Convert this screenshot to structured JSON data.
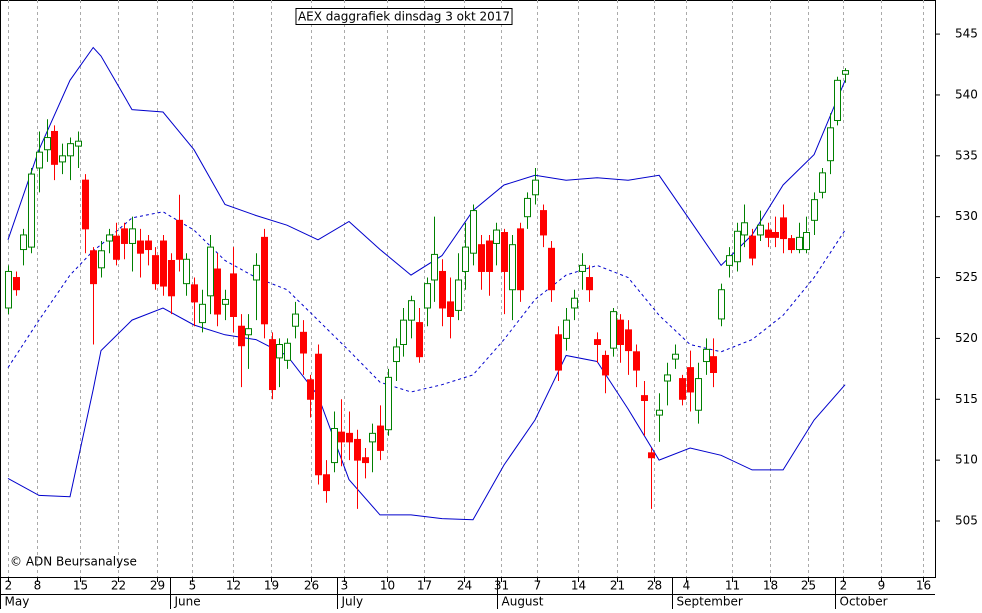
{
  "chart_data": {
    "type": "candlestick",
    "title": "AEX daggrafiek dinsdag 3 okt 2017",
    "annotation": "© ADN Beursanalyse",
    "up_color": "#008000",
    "down_color": "#ff0000",
    "band_color": "#0000cc",
    "grid": true,
    "ylim": [
      500.4,
      547.8
    ],
    "yticks": [
      505,
      510,
      515,
      520,
      525,
      530,
      535,
      540,
      545
    ],
    "xlim": [
      -1.03,
      119.6
    ],
    "xticks": [
      {
        "value": 0,
        "label": "2"
      },
      {
        "value": 3.74,
        "label": "8"
      },
      {
        "value": 9.3,
        "label": "15"
      },
      {
        "value": 14.2,
        "label": "22"
      },
      {
        "value": 19.2,
        "label": "29"
      },
      {
        "value": 23.7,
        "label": "5"
      },
      {
        "value": 29,
        "label": "12"
      },
      {
        "value": 33.9,
        "label": "19"
      },
      {
        "value": 39.1,
        "label": "26"
      },
      {
        "value": 43.4,
        "label": "3"
      },
      {
        "value": 48.9,
        "label": "10"
      },
      {
        "value": 53.7,
        "label": "17"
      },
      {
        "value": 58.8,
        "label": "24"
      },
      {
        "value": 63.6,
        "label": "31"
      },
      {
        "value": 68.3,
        "label": "7"
      },
      {
        "value": 73.6,
        "label": "14"
      },
      {
        "value": 78.6,
        "label": "21"
      },
      {
        "value": 83.4,
        "label": "28"
      },
      {
        "value": 87.5,
        "label": "4"
      },
      {
        "value": 93.4,
        "label": "11"
      },
      {
        "value": 98.3,
        "label": "18"
      },
      {
        "value": 103.2,
        "label": "25"
      },
      {
        "value": 107.7,
        "label": "2"
      },
      {
        "value": 112.6,
        "label": "9"
      },
      {
        "value": 118.1,
        "label": "16"
      }
    ],
    "month_ticks": [
      {
        "value": -1,
        "label": "May"
      },
      {
        "value": 20.9,
        "label": "June"
      },
      {
        "value": 42.5,
        "label": "July"
      },
      {
        "value": 63.1,
        "label": "August"
      },
      {
        "value": 85.7,
        "label": "September"
      },
      {
        "value": 106.7,
        "label": "October"
      }
    ],
    "candles": {
      "x": [
        0,
        1,
        2,
        3,
        4,
        5,
        6,
        7,
        8,
        9,
        10,
        11,
        12,
        13,
        14,
        15,
        16,
        17,
        18,
        19,
        20,
        21,
        22,
        23,
        24,
        25,
        26,
        27,
        28,
        29,
        30,
        31,
        32,
        33,
        34,
        35,
        36,
        37,
        38,
        39,
        40,
        41,
        42,
        43,
        44,
        45,
        46,
        47,
        48,
        49,
        50,
        51,
        52,
        53,
        54,
        55,
        56,
        57,
        58,
        59,
        60,
        61,
        62,
        63,
        64,
        65,
        66,
        67,
        68,
        69,
        70,
        71,
        72,
        73,
        74,
        75,
        76,
        77,
        78,
        79,
        80,
        81,
        82,
        83,
        84,
        85,
        86,
        87,
        88,
        89,
        90,
        91,
        92,
        93,
        94,
        95,
        96,
        97,
        98,
        99,
        100,
        101,
        102,
        103,
        104,
        105,
        106,
        107,
        108
      ],
      "open": [
        522.5,
        525,
        527.3,
        527.5,
        534,
        535.5,
        537,
        534.5,
        535,
        535.8,
        533,
        527.2,
        525.8,
        528,
        528.4,
        529,
        527.8,
        528,
        528,
        526.8,
        528,
        526.4,
        529.7,
        524.5,
        524.4,
        521.3,
        523.5,
        525.7,
        522.8,
        525.3,
        521,
        520.3,
        524.8,
        528.3,
        519.9,
        518.4,
        518.2,
        521,
        520.5,
        516.6,
        518.7,
        508.8,
        509.8,
        512.3,
        512.2,
        511.7,
        510.2,
        511.5,
        512.8,
        512.5,
        518.1,
        519.5,
        521.5,
        521.3,
        522.5,
        524.8,
        525.5,
        523,
        522.3,
        525.5,
        527,
        527.7,
        528,
        527.8,
        528.7,
        524,
        529,
        530,
        531.8,
        530.5,
        527.4,
        520.3,
        520,
        522.5,
        525.5,
        525,
        519.9,
        518.6,
        519.2,
        521.5,
        520.7,
        518.9,
        515.3,
        510.6,
        513.7,
        516.5,
        518.3,
        516.7,
        517.6,
        514.1,
        518.1,
        518.5,
        521.6,
        526,
        526.3,
        528.5,
        528.4,
        528.5,
        528.9,
        528.7,
        529.9,
        528.2,
        527.3,
        527.3,
        529.7,
        532,
        534.6,
        537.9,
        541.7
      ],
      "high": [
        526,
        525.5,
        529,
        534,
        537,
        538,
        537.5,
        536,
        536.5,
        537,
        533.5,
        527.5,
        528,
        529,
        529.5,
        529.5,
        530,
        529,
        528.5,
        527.5,
        528.5,
        527,
        531.8,
        527,
        525,
        524,
        528.5,
        527,
        524,
        527.5,
        522,
        522,
        527,
        529,
        520.5,
        520,
        520,
        523,
        521.5,
        517,
        519.5,
        510,
        514,
        515,
        514,
        512.5,
        511,
        513,
        514.5,
        517.5,
        520,
        522.5,
        523.5,
        522.5,
        525,
        530,
        526.5,
        525,
        527,
        529.5,
        531,
        528.5,
        528.5,
        529.5,
        529,
        528.5,
        529.5,
        532,
        534,
        531,
        528,
        521,
        522.5,
        524,
        527,
        526,
        520.5,
        519,
        522.5,
        522,
        521.5,
        519.5,
        516.5,
        511,
        515.5,
        518,
        519.5,
        517,
        519,
        518,
        520,
        520,
        524.5,
        527.5,
        529.5,
        531,
        529,
        530.5,
        529.5,
        530,
        531,
        528.5,
        529.5,
        530,
        532,
        534,
        538.5,
        541.5,
        542.2
      ],
      "low": [
        522,
        523.5,
        526,
        527,
        532,
        534.5,
        533,
        533.5,
        533,
        534,
        527,
        519.5,
        525,
        527,
        526,
        526.5,
        525.5,
        525,
        526,
        524,
        523.5,
        522,
        525.5,
        523.5,
        521,
        520.5,
        522,
        521,
        521.5,
        520.5,
        516,
        517.5,
        521.5,
        520,
        515,
        516,
        517.5,
        520,
        517,
        513.5,
        508,
        506.5,
        509,
        509.5,
        510,
        506,
        508.5,
        509,
        510,
        512,
        516.5,
        518.5,
        520,
        518,
        521,
        523,
        521,
        520,
        521.5,
        524,
        526,
        524,
        523.5,
        526,
        522,
        521.5,
        523,
        529,
        531,
        527.5,
        523,
        516.5,
        519,
        521.5,
        524,
        523,
        518,
        515.5,
        518.5,
        518,
        517,
        516,
        512,
        506,
        511.5,
        514.5,
        517.5,
        514.5,
        514,
        513,
        517,
        516,
        521,
        525,
        525.5,
        527.5,
        526,
        528,
        527.5,
        527.5,
        527,
        527,
        527,
        527,
        528.5,
        531.5,
        533.5,
        537.5,
        541
      ],
      "close": [
        525.5,
        524,
        528.5,
        533.5,
        535.3,
        536.5,
        534.3,
        535,
        536,
        536.2,
        529,
        524.5,
        527.2,
        528.5,
        526.5,
        527.8,
        529,
        527,
        527.3,
        524.5,
        524.3,
        523.5,
        526.5,
        526.5,
        523,
        522.8,
        527.5,
        522,
        523.2,
        521.8,
        519.4,
        520.8,
        526,
        521.2,
        515.8,
        519.5,
        519.6,
        522,
        518.8,
        515,
        508.8,
        507.5,
        512.6,
        511.5,
        511.5,
        510,
        509.8,
        512.2,
        510.8,
        516.8,
        519.3,
        521.5,
        523.1,
        518.5,
        524.5,
        526.9,
        522.5,
        521.8,
        524.8,
        527.5,
        530.5,
        525.5,
        525.5,
        528.9,
        525.5,
        527.7,
        524,
        531.5,
        533,
        528.5,
        524,
        517.4,
        521.5,
        523.3,
        526,
        524,
        519.5,
        517,
        522.2,
        519.5,
        519,
        517.4,
        514.9,
        510.2,
        514.1,
        517,
        518.7,
        515,
        515.6,
        516.7,
        519.1,
        517.2,
        524,
        526.8,
        528.8,
        529.5,
        526.6,
        529.3,
        528.3,
        528.3,
        528.2,
        527.3,
        528.3,
        528.7,
        531.4,
        533.6,
        537.3,
        541.2,
        542
      ]
    },
    "bands": [
      {
        "dash": false,
        "x": [
          0,
          4,
          8,
          11,
          12,
          16,
          20,
          24,
          28,
          32,
          36,
          40,
          44,
          48,
          52,
          56,
          60,
          64,
          68,
          72,
          76,
          80,
          84,
          88,
          92,
          96,
          100,
          104,
          108
        ],
        "values": [
          528.1,
          535.5,
          541.2,
          543.9,
          543.2,
          538.8,
          538.6,
          535.5,
          531,
          530.1,
          529.3,
          528.1,
          529.6,
          527.3,
          525.2,
          526.8,
          530.5,
          532.6,
          533.4,
          533,
          533.2,
          533,
          533.4,
          529.7,
          526,
          528.5,
          532.6,
          535.1,
          541.2
        ]
      },
      {
        "dash": true,
        "x": [
          0,
          4,
          8,
          11,
          12,
          16,
          20,
          24,
          28,
          32,
          36,
          40,
          44,
          48,
          52,
          56,
          60,
          64,
          68,
          72,
          76,
          80,
          84,
          88,
          92,
          96,
          100,
          104,
          108
        ],
        "values": [
          517.6,
          521.5,
          525.2,
          527.2,
          527.7,
          529.9,
          530.4,
          528.9,
          526.4,
          525,
          524,
          521.5,
          519,
          516.4,
          515.6,
          516.2,
          517,
          519.9,
          523.2,
          525.2,
          526,
          525,
          521.9,
          519.5,
          518.9,
          519.9,
          521.9,
          525,
          528.9
        ]
      },
      {
        "dash": false,
        "x": [
          0,
          4,
          8,
          11,
          12,
          16,
          20,
          24,
          28,
          32,
          36,
          40,
          44,
          48,
          52,
          56,
          60,
          64,
          68,
          72,
          76,
          80,
          84,
          88,
          92,
          96,
          100,
          104,
          108
        ],
        "values": [
          508.5,
          507.1,
          507,
          515.8,
          519,
          521.5,
          522.5,
          521.1,
          520.3,
          519.9,
          518.6,
          515.3,
          508.4,
          505.5,
          505.5,
          505.2,
          505.1,
          509.6,
          513.3,
          518.6,
          518.1,
          514.2,
          510,
          511,
          510.4,
          509.2,
          509.2,
          513.3,
          516.2
        ]
      }
    ]
  }
}
